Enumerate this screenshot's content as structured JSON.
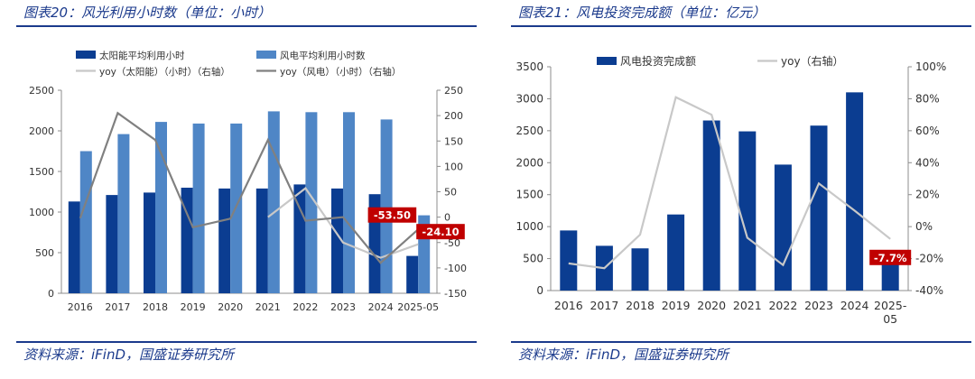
{
  "panels": [
    {
      "title": "图表20：风光利用小时数（单位：小时）",
      "source": "资料来源：iFinD，国盛证券研究所"
    },
    {
      "title": "图表21：风电投资完成额（单位：亿元）",
      "source": "资料来源：iFinD，国盛证券研究所"
    }
  ],
  "chart_data": [
    {
      "type": "bar",
      "categories": [
        "2016",
        "2017",
        "2018",
        "2019",
        "2020",
        "2021",
        "2022",
        "2023",
        "2024",
        "2025-05"
      ],
      "series": [
        {
          "name": "太阳能平均利用小时",
          "kind": "bar",
          "axis": "left",
          "color": "#0b3d91",
          "values": [
            1130,
            1210,
            1240,
            1300,
            1290,
            1290,
            1340,
            1290,
            1220,
            460
          ]
        },
        {
          "name": "风电平均利用小时数",
          "kind": "bar",
          "axis": "left",
          "color": "#4f86c6",
          "values": [
            1750,
            1960,
            2110,
            2090,
            2090,
            2240,
            2230,
            2230,
            2140,
            960
          ]
        },
        {
          "name": "yoy（太阳能）（小时）（右轴）",
          "kind": "line",
          "axis": "right",
          "color": "#c8c8c8",
          "values": [
            null,
            null,
            null,
            null,
            null,
            0,
            57,
            -50,
            -80,
            -53.5
          ]
        },
        {
          "name": "yoy（风电）（小时）（右轴）",
          "kind": "line",
          "axis": "right",
          "color": "#808080",
          "values": [
            -2,
            205,
            152,
            -20,
            -3,
            152,
            -7,
            0,
            -90,
            -24.1
          ]
        }
      ],
      "left_axis": {
        "min": 0,
        "max": 2500,
        "step": 500,
        "ticks": [
          "0",
          "500",
          "1000",
          "1500",
          "2000",
          "2500"
        ]
      },
      "right_axis": {
        "min": -150,
        "max": 250,
        "step": 50,
        "ticks": [
          "-150",
          "-100",
          "-50",
          "0",
          "50",
          "100",
          "150",
          "200",
          "250"
        ]
      },
      "annotations": [
        {
          "text": "-53.50",
          "series": 2,
          "index": 9
        },
        {
          "text": "-24.10",
          "series": 3,
          "index": 9
        }
      ],
      "legend_position": "top-left",
      "grid": false
    },
    {
      "type": "bar",
      "categories": [
        "2016",
        "2017",
        "2018",
        "2019",
        "2020",
        "2021",
        "2022",
        "2023",
        "2024",
        "2025-05"
      ],
      "series": [
        {
          "name": "风电投资完成额",
          "kind": "bar",
          "axis": "left",
          "color": "#0b3d91",
          "values": [
            940,
            700,
            660,
            1190,
            2660,
            2490,
            1970,
            2580,
            3100,
            560
          ]
        },
        {
          "name": "yoy（右轴）",
          "kind": "line",
          "axis": "right",
          "color": "#c8c8c8",
          "values": [
            -23,
            -26,
            -5,
            81,
            70,
            -7,
            -24,
            27,
            10,
            -7.7
          ]
        }
      ],
      "left_axis": {
        "min": 0,
        "max": 3500,
        "step": 500,
        "ticks": [
          "0",
          "500",
          "1000",
          "1500",
          "2000",
          "2500",
          "3000",
          "3500"
        ]
      },
      "right_axis": {
        "min": -40,
        "max": 100,
        "step": 20,
        "ticks": [
          "-40%",
          "-20%",
          "0%",
          "20%",
          "40%",
          "60%",
          "80%",
          "100%"
        ]
      },
      "annotations": [
        {
          "text": "-7.7%",
          "series": 1,
          "index": 9
        }
      ],
      "legend_position": "top",
      "grid": false
    }
  ]
}
